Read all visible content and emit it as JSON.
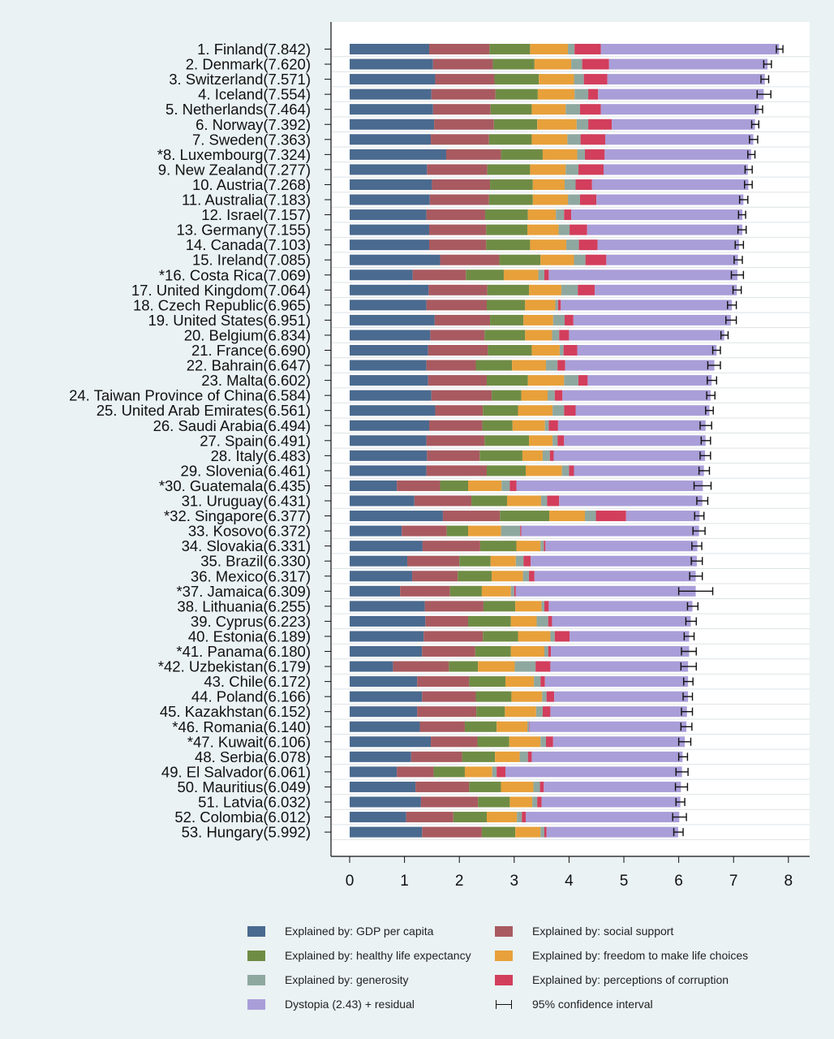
{
  "chart_data": {
    "type": "bar",
    "orientation": "horizontal",
    "stacked": true,
    "title": "",
    "xlabel": "",
    "ylabel": "",
    "xlim": [
      0,
      8.3
    ],
    "x_ticks": [
      0,
      1,
      2,
      3,
      4,
      5,
      6,
      7,
      8
    ],
    "grid": "horizontal lines between rows",
    "legend_position": "bottom",
    "categories": [
      "1. Finland(7.842)",
      "2. Denmark(7.620)",
      "3. Switzerland(7.571)",
      "4. Iceland(7.554)",
      "5. Netherlands(7.464)",
      "6. Norway(7.392)",
      "7. Sweden(7.363)",
      "*8. Luxembourg(7.324)",
      "9. New Zealand(7.277)",
      "10. Austria(7.268)",
      "11. Australia(7.183)",
      "12. Israel(7.157)",
      "13. Germany(7.155)",
      "14. Canada(7.103)",
      "15. Ireland(7.085)",
      "*16. Costa Rica(7.069)",
      "17. United Kingdom(7.064)",
      "18. Czech Republic(6.965)",
      "19. United States(6.951)",
      "20. Belgium(6.834)",
      "21. France(6.690)",
      "22. Bahrain(6.647)",
      "23. Malta(6.602)",
      "24. Taiwan Province of China(6.584)",
      "25. United Arab Emirates(6.561)",
      "26. Saudi Arabia(6.494)",
      "27. Spain(6.491)",
      "28. Italy(6.483)",
      "29. Slovenia(6.461)",
      "*30. Guatemala(6.435)",
      "31. Uruguay(6.431)",
      "*32. Singapore(6.377)",
      "33. Kosovo(6.372)",
      "34. Slovakia(6.331)",
      "35. Brazil(6.330)",
      "36. Mexico(6.317)",
      "*37. Jamaica(6.309)",
      "38. Lithuania(6.255)",
      "39. Cyprus(6.223)",
      "40. Estonia(6.189)",
      "*41. Panama(6.180)",
      "*42. Uzbekistan(6.179)",
      "43. Chile(6.172)",
      "44. Poland(6.166)",
      "45. Kazakhstan(6.152)",
      "*46. Romania(6.140)",
      "*47. Kuwait(6.106)",
      "48. Serbia(6.078)",
      "49. El Salvador(6.061)",
      "50. Mauritius(6.049)",
      "51. Latvia(6.032)",
      "52. Colombia(6.012)",
      "53. Hungary(5.992)"
    ],
    "series": [
      {
        "name": "Explained by: GDP per capita",
        "color": "#4a6a8f",
        "values": [
          1.45,
          1.52,
          1.56,
          1.49,
          1.52,
          1.54,
          1.48,
          1.76,
          1.41,
          1.5,
          1.46,
          1.4,
          1.45,
          1.45,
          1.65,
          1.15,
          1.44,
          1.4,
          1.55,
          1.47,
          1.43,
          1.4,
          1.43,
          1.49,
          1.56,
          1.45,
          1.4,
          1.41,
          1.4,
          0.86,
          1.18,
          1.7,
          0.95,
          1.33,
          1.05,
          1.14,
          0.92,
          1.37,
          1.38,
          1.35,
          1.32,
          0.79,
          1.23,
          1.32,
          1.23,
          1.28,
          1.48,
          1.12,
          0.86,
          1.2,
          1.3,
          1.03,
          1.32
        ]
      },
      {
        "name": "Explained by: social support",
        "color": "#a85a60",
        "values": [
          1.1,
          1.09,
          1.08,
          1.17,
          1.05,
          1.09,
          1.06,
          1.0,
          1.1,
          1.06,
          1.08,
          1.07,
          1.04,
          1.04,
          1.08,
          0.97,
          1.07,
          1.1,
          1.01,
          0.99,
          1.09,
          0.9,
          1.07,
          1.1,
          0.87,
          0.97,
          1.06,
          0.96,
          1.1,
          0.79,
          1.04,
          1.04,
          0.82,
          1.05,
          0.95,
          0.83,
          0.91,
          1.07,
          0.78,
          1.08,
          0.97,
          1.02,
          0.95,
          0.98,
          1.08,
          0.82,
          0.85,
          0.93,
          0.67,
          0.98,
          1.04,
          0.86,
          1.09
        ]
      },
      {
        "name": "Explained by: healthy life expectancy",
        "color": "#6f8c45",
        "values": [
          0.74,
          0.76,
          0.81,
          0.77,
          0.75,
          0.79,
          0.78,
          0.76,
          0.78,
          0.78,
          0.8,
          0.78,
          0.75,
          0.8,
          0.75,
          0.69,
          0.76,
          0.7,
          0.61,
          0.74,
          0.8,
          0.66,
          0.75,
          0.54,
          0.64,
          0.55,
          0.81,
          0.78,
          0.71,
          0.51,
          0.65,
          0.9,
          0.39,
          0.66,
          0.57,
          0.62,
          0.58,
          0.58,
          0.78,
          0.64,
          0.65,
          0.53,
          0.66,
          0.65,
          0.52,
          0.58,
          0.58,
          0.6,
          0.57,
          0.58,
          0.58,
          0.61,
          0.61
        ]
      },
      {
        "name": "Explained by: freedom to make life choices",
        "color": "#e8a03a",
        "values": [
          0.69,
          0.67,
          0.64,
          0.67,
          0.62,
          0.72,
          0.65,
          0.63,
          0.65,
          0.58,
          0.64,
          0.51,
          0.57,
          0.66,
          0.61,
          0.63,
          0.59,
          0.55,
          0.54,
          0.49,
          0.51,
          0.62,
          0.66,
          0.48,
          0.63,
          0.59,
          0.43,
          0.37,
          0.66,
          0.61,
          0.62,
          0.65,
          0.6,
          0.44,
          0.46,
          0.57,
          0.53,
          0.48,
          0.47,
          0.59,
          0.61,
          0.67,
          0.52,
          0.56,
          0.57,
          0.56,
          0.57,
          0.45,
          0.5,
          0.59,
          0.41,
          0.55,
          0.46
        ]
      },
      {
        "name": "Explained by: generosity",
        "color": "#8ea8a0",
        "values": [
          0.12,
          0.2,
          0.18,
          0.25,
          0.26,
          0.21,
          0.24,
          0.14,
          0.23,
          0.2,
          0.22,
          0.15,
          0.2,
          0.23,
          0.21,
          0.11,
          0.3,
          0.05,
          0.21,
          0.13,
          0.07,
          0.21,
          0.26,
          0.13,
          0.21,
          0.07,
          0.09,
          0.13,
          0.13,
          0.15,
          0.11,
          0.2,
          0.35,
          0.06,
          0.14,
          0.11,
          0.06,
          0.05,
          0.21,
          0.08,
          0.07,
          0.38,
          0.12,
          0.08,
          0.12,
          0.03,
          0.1,
          0.15,
          0.08,
          0.12,
          0.09,
          0.09,
          0.07
        ]
      },
      {
        "name": "Explained by: perceptions of corruption",
        "color": "#d23e5c",
        "values": [
          0.48,
          0.49,
          0.43,
          0.18,
          0.38,
          0.43,
          0.45,
          0.36,
          0.46,
          0.3,
          0.3,
          0.13,
          0.32,
          0.34,
          0.38,
          0.08,
          0.31,
          0.05,
          0.16,
          0.18,
          0.25,
          0.14,
          0.17,
          0.14,
          0.21,
          0.17,
          0.12,
          0.07,
          0.09,
          0.12,
          0.22,
          0.55,
          0.02,
          0.03,
          0.13,
          0.1,
          0.03,
          0.08,
          0.07,
          0.27,
          0.05,
          0.27,
          0.08,
          0.14,
          0.14,
          0.01,
          0.13,
          0.07,
          0.16,
          0.07,
          0.08,
          0.07,
          0.04
        ]
      },
      {
        "name": "Dystopia (2.43) + residual",
        "color": "#a99ed8",
        "values": [
          3.25,
          2.89,
          2.87,
          3.02,
          2.88,
          2.61,
          2.7,
          2.67,
          2.63,
          2.85,
          2.68,
          3.12,
          2.83,
          2.58,
          2.4,
          3.44,
          2.59,
          3.12,
          2.87,
          2.83,
          2.54,
          2.72,
          2.26,
          2.7,
          2.44,
          2.69,
          2.58,
          2.76,
          2.37,
          3.4,
          2.61,
          1.34,
          3.24,
          2.77,
          3.03,
          2.94,
          3.28,
          2.62,
          2.53,
          2.18,
          2.52,
          2.51,
          2.61,
          2.44,
          2.49,
          2.86,
          2.4,
          2.75,
          3.22,
          2.5,
          2.53,
          2.8,
          2.4
        ]
      }
    ],
    "confidence_interval": {
      "name": "95% confidence interval",
      "color": "#111111",
      "low": [
        7.78,
        7.55,
        7.5,
        7.43,
        7.4,
        7.33,
        7.29,
        7.26,
        7.21,
        7.2,
        7.11,
        7.09,
        7.08,
        7.03,
        7.01,
        6.96,
        6.99,
        6.89,
        6.86,
        6.77,
        6.62,
        6.53,
        6.52,
        6.51,
        6.49,
        6.39,
        6.41,
        6.39,
        6.37,
        6.28,
        6.33,
        6.29,
        6.26,
        6.24,
        6.23,
        6.2,
        6.0,
        6.16,
        6.13,
        6.1,
        6.05,
        6.04,
        6.09,
        6.08,
        6.05,
        6.04,
        6.0,
        6.0,
        5.95,
        5.94,
        5.95,
        5.89,
        5.91
      ],
      "high": [
        7.9,
        7.69,
        7.64,
        7.68,
        7.53,
        7.46,
        7.44,
        7.39,
        7.34,
        7.34,
        7.26,
        7.22,
        7.23,
        7.18,
        7.16,
        7.18,
        7.14,
        7.05,
        7.05,
        6.9,
        6.76,
        6.76,
        6.69,
        6.66,
        6.63,
        6.6,
        6.58,
        6.58,
        6.56,
        6.59,
        6.53,
        6.46,
        6.48,
        6.42,
        6.43,
        6.43,
        6.62,
        6.35,
        6.32,
        6.28,
        6.32,
        6.32,
        6.26,
        6.25,
        6.25,
        6.24,
        6.22,
        6.16,
        6.17,
        6.16,
        6.11,
        6.14,
        6.08
      ]
    }
  }
}
